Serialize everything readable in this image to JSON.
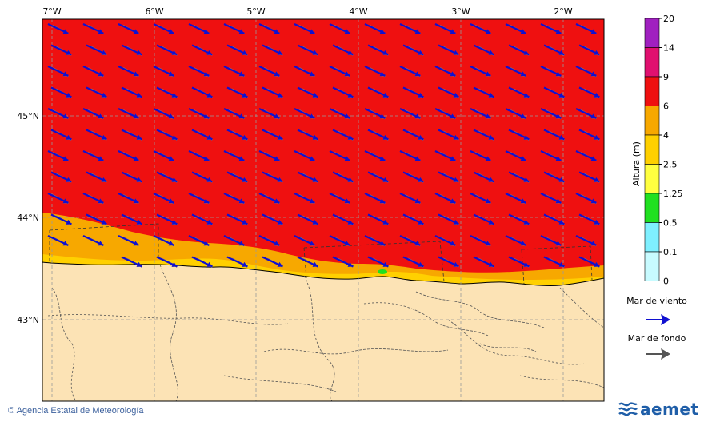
{
  "map": {
    "lon_labels": [
      "7°W",
      "6°W",
      "5°W",
      "4°W",
      "3°W",
      "2°W"
    ],
    "lat_labels": [
      "45°N",
      "44°N",
      "43°N"
    ],
    "colors": {
      "land": "#fce3b5",
      "sea_high": "#ef1010",
      "sea_mid": "#f7a800",
      "sea_low": "#ffd000",
      "graticule": "#999999",
      "wind_arrow": "#1010d0",
      "swell_arrow": "#808080"
    }
  },
  "legend": {
    "title": "Altura (m)",
    "levels": [
      "20",
      "14",
      "9",
      "6",
      "4",
      "2.5",
      "1.25",
      "0.5",
      "0.1",
      "0"
    ],
    "colors": [
      "#a020c0",
      "#e0106f",
      "#ef1010",
      "#f7a800",
      "#ffd000",
      "#ffff40",
      "#20e020",
      "#7ff0ff",
      "#c8fbff"
    ],
    "wind_label": "Mar de viento",
    "swell_label": "Mar de fondo"
  },
  "footer": {
    "credit": "Agencia Estatal de Meteorología",
    "brand": "aemet",
    "copyright_symbol": "©"
  }
}
